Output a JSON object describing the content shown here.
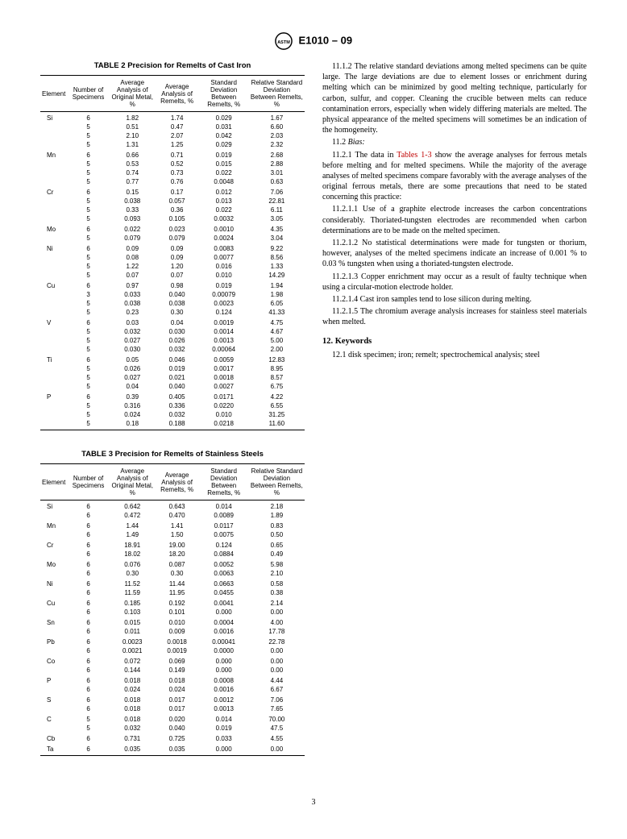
{
  "doc_id": "E1010 – 09",
  "page_number": "3",
  "table2": {
    "title": "TABLE 2 Precision for Remelts of Cast Iron",
    "columns": [
      "Element",
      "Number of Specimens",
      "Average Analysis of Original Metal, %",
      "Average Analysis of Remelts, %",
      "Standard Deviation Between Remelts, %",
      "Relative Standard Deviation Between Remelts, %"
    ],
    "rows": [
      [
        "Si",
        "6",
        "1.82",
        "1.74",
        "0.029",
        "1.67"
      ],
      [
        "",
        "5",
        "0.51",
        "0.47",
        "0.031",
        "6.60"
      ],
      [
        "",
        "5",
        "2.10",
        "2.07",
        "0.042",
        "2.03"
      ],
      [
        "",
        "5",
        "1.31",
        "1.25",
        "0.029",
        "2.32"
      ],
      [
        "Mn",
        "6",
        "0.66",
        "0.71",
        "0.019",
        "2.68"
      ],
      [
        "",
        "5",
        "0.53",
        "0.52",
        "0.015",
        "2.88"
      ],
      [
        "",
        "5",
        "0.74",
        "0.73",
        "0.022",
        "3.01"
      ],
      [
        "",
        "5",
        "0.77",
        "0.76",
        "0.0048",
        "0.63"
      ],
      [
        "Cr",
        "6",
        "0.15",
        "0.17",
        "0.012",
        "7.06"
      ],
      [
        "",
        "5",
        "0.038",
        "0.057",
        "0.013",
        "22.81"
      ],
      [
        "",
        "5",
        "0.33",
        "0.36",
        "0.022",
        "6.11"
      ],
      [
        "",
        "5",
        "0.093",
        "0.105",
        "0.0032",
        "3.05"
      ],
      [
        "Mo",
        "6",
        "0.022",
        "0.023",
        "0.0010",
        "4.35"
      ],
      [
        "",
        "5",
        "0.079",
        "0.079",
        "0.0024",
        "3.04"
      ],
      [
        "Ni",
        "6",
        "0.09",
        "0.09",
        "0.0083",
        "9.22"
      ],
      [
        "",
        "5",
        "0.08",
        "0.09",
        "0.0077",
        "8.56"
      ],
      [
        "",
        "5",
        "1.22",
        "1.20",
        "0.016",
        "1.33"
      ],
      [
        "",
        "5",
        "0.07",
        "0.07",
        "0.010",
        "14.29"
      ],
      [
        "Cu",
        "6",
        "0.97",
        "0.98",
        "0.019",
        "1.94"
      ],
      [
        "",
        "3",
        "0.033",
        "0.040",
        "0.00079",
        "1.98"
      ],
      [
        "",
        "5",
        "0.038",
        "0.038",
        "0.0023",
        "6.05"
      ],
      [
        "",
        "5",
        "0.23",
        "0.30",
        "0.124",
        "41.33"
      ],
      [
        "V",
        "6",
        "0.03",
        "0.04",
        "0.0019",
        "4.75"
      ],
      [
        "",
        "5",
        "0.032",
        "0.030",
        "0.0014",
        "4.67"
      ],
      [
        "",
        "5",
        "0.027",
        "0.026",
        "0.0013",
        "5.00"
      ],
      [
        "",
        "5",
        "0.030",
        "0.032",
        "0.00064",
        "2.00"
      ],
      [
        "Ti",
        "6",
        "0.05",
        "0.046",
        "0.0059",
        "12.83"
      ],
      [
        "",
        "5",
        "0.026",
        "0.019",
        "0.0017",
        "8.95"
      ],
      [
        "",
        "5",
        "0.027",
        "0.021",
        "0.0018",
        "8.57"
      ],
      [
        "",
        "5",
        "0.04",
        "0.040",
        "0.0027",
        "6.75"
      ],
      [
        "P",
        "6",
        "0.39",
        "0.405",
        "0.0171",
        "4.22"
      ],
      [
        "",
        "5",
        "0.316",
        "0.336",
        "0.0220",
        "6.55"
      ],
      [
        "",
        "5",
        "0.024",
        "0.032",
        "0.010",
        "31.25"
      ],
      [
        "",
        "5",
        "0.18",
        "0.188",
        "0.0218",
        "11.60"
      ]
    ]
  },
  "table3": {
    "title": "TABLE 3 Precision for Remelts of Stainless Steels",
    "columns": [
      "Element",
      "Number of Specimens",
      "Average Analysis of Original Metal, %",
      "Average Analysis of Remelts, %",
      "Standard Deviation Between Remelts, %",
      "Relative Standard Deviation Between Remelts, %"
    ],
    "rows": [
      [
        "Si",
        "6",
        "0.642",
        "0.643",
        "0.014",
        "2.18"
      ],
      [
        "",
        "6",
        "0.472",
        "0.470",
        "0.0089",
        "1.89"
      ],
      [
        "Mn",
        "6",
        "1.44",
        "1.41",
        "0.0117",
        "0.83"
      ],
      [
        "",
        "6",
        "1.49",
        "1.50",
        "0.0075",
        "0.50"
      ],
      [
        "Cr",
        "6",
        "18.91",
        "19.00",
        "0.124",
        "0.65"
      ],
      [
        "",
        "6",
        "18.02",
        "18.20",
        "0.0884",
        "0.49"
      ],
      [
        "Mo",
        "6",
        "0.076",
        "0.087",
        "0.0052",
        "5.98"
      ],
      [
        "",
        "6",
        "0.30",
        "0.30",
        "0.0063",
        "2.10"
      ],
      [
        "Ni",
        "6",
        "11.52",
        "11.44",
        "0.0663",
        "0.58"
      ],
      [
        "",
        "6",
        "11.59",
        "11.95",
        "0.0455",
        "0.38"
      ],
      [
        "Cu",
        "6",
        "0.185",
        "0.192",
        "0.0041",
        "2.14"
      ],
      [
        "",
        "6",
        "0.103",
        "0.101",
        "0.000",
        "0.00"
      ],
      [
        "Sn",
        "6",
        "0.015",
        "0.010",
        "0.0004",
        "4.00"
      ],
      [
        "",
        "6",
        "0.011",
        "0.009",
        "0.0016",
        "17.78"
      ],
      [
        "Pb",
        "6",
        "0.0023",
        "0.0018",
        "0.00041",
        "22.78"
      ],
      [
        "",
        "6",
        "0.0021",
        "0.0019",
        "0.0000",
        "0.00"
      ],
      [
        "Co",
        "6",
        "0.072",
        "0.069",
        "0.000",
        "0.00"
      ],
      [
        "",
        "6",
        "0.144",
        "0.149",
        "0.000",
        "0.00"
      ],
      [
        "P",
        "6",
        "0.018",
        "0.018",
        "0.0008",
        "4.44"
      ],
      [
        "",
        "6",
        "0.024",
        "0.024",
        "0.0016",
        "6.67"
      ],
      [
        "S",
        "6",
        "0.018",
        "0.017",
        "0.0012",
        "7.06"
      ],
      [
        "",
        "6",
        "0.018",
        "0.017",
        "0.0013",
        "7.65"
      ],
      [
        "C",
        "5",
        "0.018",
        "0.020",
        "0.014",
        "70.00"
      ],
      [
        "",
        "5",
        "0.032",
        "0.040",
        "0.019",
        "47.5"
      ],
      [
        "Cb",
        "6",
        "0.731",
        "0.725",
        "0.033",
        "4.55"
      ],
      [
        "Ta",
        "6",
        "0.035",
        "0.035",
        "0.000",
        "0.00"
      ]
    ]
  },
  "body": {
    "p11_1_2": "11.1.2 The relative standard deviations among melted specimens can be quite large. The large deviations are due to element losses or enrichment during melting which can be minimized by good melting technique, particularly for carbon, sulfur, and copper. Cleaning the crucible between melts can reduce contamination errors, especially when widely differing materials are melted. The physical appearance of the melted specimens will sometimes be an indication of the homogeneity.",
    "p11_2_head": "11.2",
    "p11_2_label": "Bias:",
    "p11_2_1_a": "11.2.1 The data in ",
    "p11_2_1_ref": "Tables 1-3",
    "p11_2_1_b": " show the average analyses for ferrous metals before melting and for melted specimens. While the majority of the average analyses of melted specimens compare favorably with the average analyses of the original ferrous metals, there are some precautions that need to be stated concerning this practice:",
    "p11_2_1_1": "11.2.1.1 Use of a graphite electrode increases the carbon concentrations considerably. Thoriated-tungsten electrodes are recommended when carbon determinations are to be made on the melted specimen.",
    "p11_2_1_2": "11.2.1.2 No statistical determinations were made for tungsten or thorium, however, analyses of the melted specimens indicate an increase of 0.001 % to 0.03 % tungsten when using a thoriated-tungsten electrode.",
    "p11_2_1_3": "11.2.1.3 Copper enrichment may occur as a result of faulty technique when using a circular-motion electrode holder.",
    "p11_2_1_4": "11.2.1.4 Cast iron samples tend to lose silicon during melting.",
    "p11_2_1_5": "11.2.1.5 The chromium average analysis increases for stainless steel materials when melted.",
    "keywords_head": "12. Keywords",
    "keywords": "12.1 disk specimen; iron; remelt; spectrochemical analysis; steel"
  }
}
